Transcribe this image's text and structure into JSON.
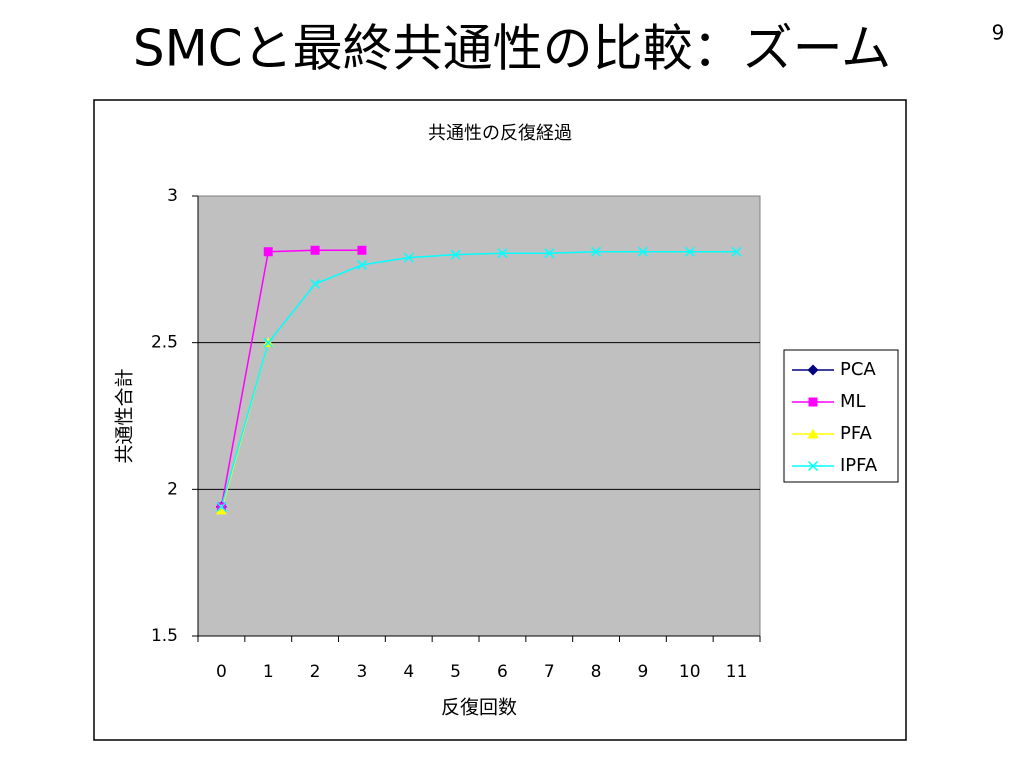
{
  "slide": {
    "title": "SMCと最終共通性の比較：ズーム",
    "page_number": 9
  },
  "chart_data": {
    "type": "line",
    "title": "共通性の反復経過",
    "xlabel": "反復回数",
    "ylabel": "共通性合計",
    "categories": [
      0,
      1,
      2,
      3,
      4,
      5,
      6,
      7,
      8,
      9,
      10,
      11
    ],
    "series": [
      {
        "name": "PCA",
        "color": "#000080",
        "marker": "diamond",
        "values": [
          1.94,
          null,
          null,
          null,
          null,
          null,
          null,
          null,
          null,
          null,
          null,
          null
        ]
      },
      {
        "name": "ML",
        "color": "#ff00ff",
        "marker": "square",
        "values": [
          1.94,
          2.81,
          2.815,
          2.815,
          null,
          null,
          null,
          null,
          null,
          null,
          null,
          null
        ]
      },
      {
        "name": "PFA",
        "color": "#ffff00",
        "marker": "triangle",
        "values": [
          1.93,
          2.5,
          null,
          null,
          null,
          null,
          null,
          null,
          null,
          null,
          null,
          null
        ]
      },
      {
        "name": "IPFA",
        "color": "#00ffff",
        "marker": "x",
        "values": [
          1.94,
          2.5,
          2.7,
          2.765,
          2.79,
          2.8,
          2.805,
          2.805,
          2.81,
          2.81,
          2.81,
          2.81
        ]
      }
    ],
    "ylim": [
      1.5,
      3
    ],
    "yticks": [
      1.5,
      2,
      2.5,
      3
    ],
    "grid": true,
    "plot_background": "#c0c0c0",
    "legend": "right"
  }
}
